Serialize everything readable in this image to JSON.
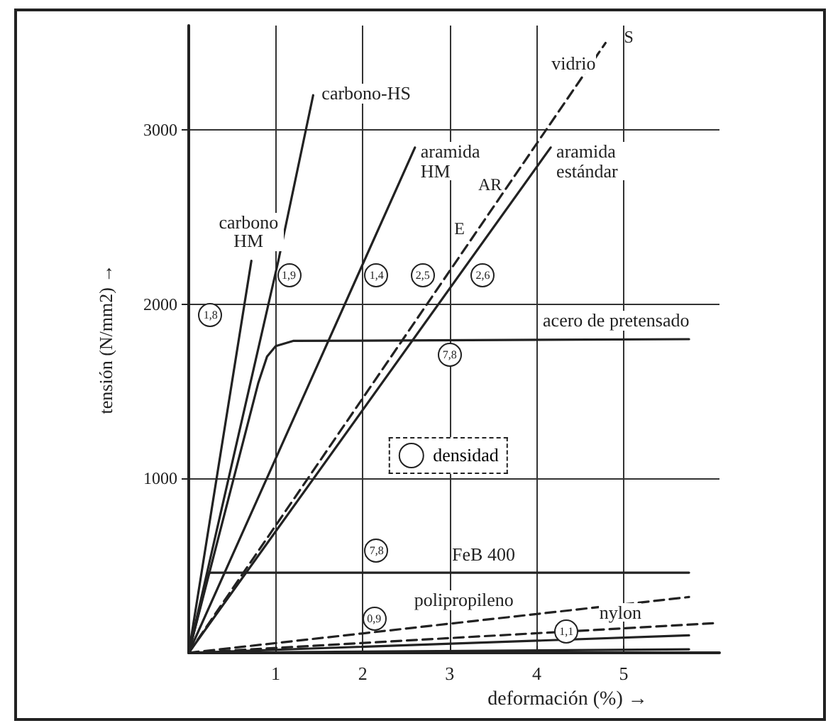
{
  "chart_data": {
    "type": "line",
    "xlabel": "deformación (%) →",
    "ylabel": "tensión (N/mm2) →",
    "xlim": [
      0,
      6.1
    ],
    "ylim": [
      0,
      3600
    ],
    "xticks": [
      1,
      2,
      3,
      4,
      5
    ],
    "yticks": [
      1000,
      2000,
      3000
    ],
    "grid": true,
    "legend": false,
    "marker": "none",
    "series": [
      {
        "name": "carbono-HS",
        "color": "#222222",
        "x": [
          0,
          1.03,
          1.43
        ],
        "values": [
          0,
          2250,
          3200
        ],
        "line_style": "solid"
      },
      {
        "name": "carbono HM",
        "color": "#222222",
        "x": [
          0,
          0.72
        ],
        "values": [
          0,
          2250
        ],
        "line_style": "solid"
      },
      {
        "name": "aramida HM",
        "color": "#222222",
        "x": [
          0,
          2.6
        ],
        "values": [
          0,
          2900
        ],
        "line_style": "solid"
      },
      {
        "name": "vidrio",
        "color": "#222222",
        "x": [
          0,
          4.79
        ],
        "values": [
          0,
          3500
        ],
        "line_style": "dashed"
      },
      {
        "name": "aramida estándar",
        "color": "#222222",
        "x": [
          0,
          4.16
        ],
        "values": [
          0,
          2900
        ],
        "line_style": "solid"
      },
      {
        "name": "acero de pretensado",
        "color": "#222222",
        "x": [
          0,
          0.8,
          0.9,
          1.0,
          1.2,
          5.75
        ],
        "values": [
          0,
          1550,
          1700,
          1760,
          1790,
          1800
        ],
        "line_style": "solid"
      },
      {
        "name": "FeB 400",
        "color": "#222222",
        "x": [
          0,
          0.23,
          5.75
        ],
        "values": [
          0,
          460,
          460
        ],
        "line_style": "solid"
      },
      {
        "name": "polipropileno",
        "color": "#222222",
        "x": [
          0,
          5.75
        ],
        "values": [
          0,
          320
        ],
        "line_style": "dashed"
      },
      {
        "name": "nylon",
        "color": "#222222",
        "x": [
          0,
          6.05
        ],
        "values": [
          0,
          170
        ],
        "line_style": "dashed"
      },
      {
        "color": "#222222",
        "x": [
          0,
          5.75
        ],
        "values": [
          0,
          100
        ],
        "line_style": "solid"
      },
      {
        "color": "#222222",
        "x": [
          0,
          5.75
        ],
        "values": [
          0,
          20
        ],
        "line_style": "solid"
      }
    ],
    "annotations": [
      "S",
      "AR",
      "E",
      {
        "text": "1,8",
        "x": 0.25,
        "y": 1935
      },
      {
        "text": "1,9",
        "x": 1.15,
        "y": 2170
      },
      {
        "text": "1,4",
        "x": 2.16,
        "y": 2170
      },
      {
        "text": "2,5",
        "x": 2.69,
        "y": 2170
      },
      {
        "text": "2,6",
        "x": 3.38,
        "y": 2170
      },
      {
        "text": "7,8",
        "x": 3.0,
        "y": 1710
      },
      {
        "text": "7,8",
        "x": 2.16,
        "y": 585
      },
      {
        "text": "0,9",
        "x": 2.13,
        "y": 195
      },
      {
        "text": "1,1",
        "x": 4.34,
        "y": 120
      },
      "densidad"
    ]
  }
}
